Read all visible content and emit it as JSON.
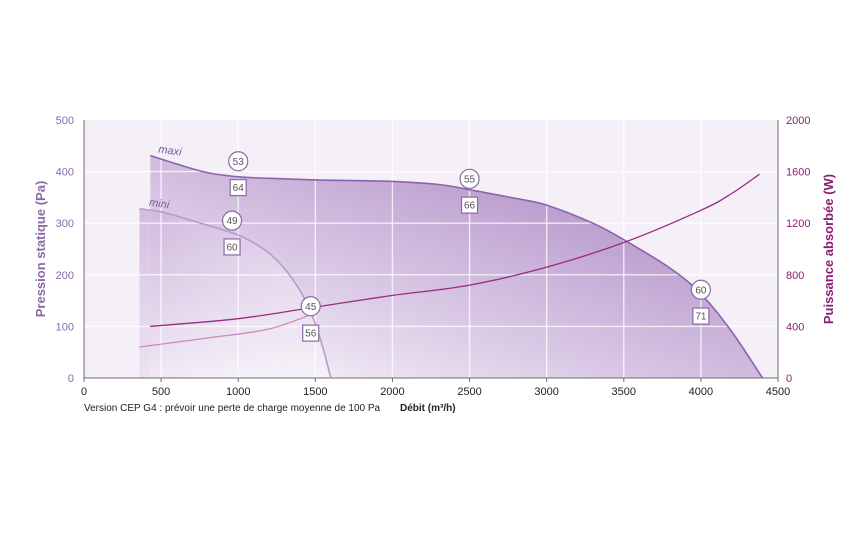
{
  "chart_data": {
    "type": "line",
    "xlabel": "Débit (m³/h)",
    "ylabel": "Pression statique (Pa)",
    "y2label": "Puissance absorbée (W)",
    "note": "Version CEP G4 : prévoir une perte de charge moyenne de 100 Pa",
    "xlim": [
      0,
      4500
    ],
    "ylim": [
      0,
      500
    ],
    "y2lim": [
      0,
      2000
    ],
    "x_ticks": [
      "0",
      "500",
      "1000",
      "1500",
      "2000",
      "2500",
      "3000",
      "3500",
      "4000",
      "4500"
    ],
    "y_ticks": [
      "0",
      "100",
      "200",
      "300",
      "400",
      "500"
    ],
    "y2_ticks": [
      "0",
      "400",
      "800",
      "1200",
      "1600",
      "2000"
    ],
    "grid": true,
    "series": [
      {
        "name": "maxi",
        "axis": "left",
        "color": "#8e62ac",
        "x": [
          430,
          600,
          800,
          1000,
          1200,
          1500,
          2000,
          2300,
          2500,
          2800,
          3000,
          3300,
          3500,
          3800,
          4000,
          4200,
          4400
        ],
        "y": [
          431,
          415,
          398,
          390,
          387,
          384,
          381,
          375,
          365,
          348,
          335,
          300,
          268,
          213,
          163,
          90,
          0
        ]
      },
      {
        "name": "mini",
        "axis": "left",
        "color": "#b99acc",
        "x": [
          360,
          500,
          700,
          900,
          1000,
          1100,
          1200,
          1300,
          1400,
          1450,
          1500,
          1550,
          1600
        ],
        "y": [
          328,
          322,
          305,
          287,
          277,
          262,
          242,
          212,
          170,
          140,
          105,
          58,
          0
        ]
      },
      {
        "name": "power-maxi",
        "axis": "right",
        "color": "#9a2a82",
        "x": [
          430,
          1000,
          1500,
          2000,
          2500,
          3000,
          3500,
          4000,
          4200,
          4380
        ],
        "y": [
          400,
          460,
          550,
          640,
          720,
          860,
          1050,
          1300,
          1430,
          1580
        ]
      },
      {
        "name": "power-mini",
        "axis": "right",
        "color": "#cf86bd",
        "x": [
          360,
          800,
          1200,
          1500
        ],
        "y": [
          240,
          310,
          380,
          505
        ]
      }
    ],
    "annotations": [
      {
        "shape": "circle",
        "text": "53",
        "x": 1000,
        "y": 420
      },
      {
        "shape": "square",
        "text": "64",
        "x": 1000,
        "y": 369
      },
      {
        "shape": "circle",
        "text": "49",
        "x": 960,
        "y": 305
      },
      {
        "shape": "square",
        "text": "60",
        "x": 960,
        "y": 254
      },
      {
        "shape": "circle",
        "text": "55",
        "x": 2500,
        "y": 386
      },
      {
        "shape": "square",
        "text": "66",
        "x": 2500,
        "y": 335
      },
      {
        "shape": "circle",
        "text": "45",
        "x": 1470,
        "y": 139
      },
      {
        "shape": "square",
        "text": "56",
        "x": 1470,
        "y": 87
      },
      {
        "shape": "circle",
        "text": "60",
        "x": 4000,
        "y": 171
      },
      {
        "shape": "square",
        "text": "71",
        "x": 4000,
        "y": 120
      }
    ],
    "label_positions": [
      {
        "text": "maxi",
        "x": 480,
        "y": 437
      },
      {
        "text": "mini",
        "x": 420,
        "y": 334
      }
    ],
    "colors": {
      "plot_background": "#f5f0f7",
      "fill_dark": "#a47dbd",
      "fill_light": "#ffffff",
      "grid": "#ffffff",
      "left_axis": "#8a6aa6",
      "right_axis": "#8a1f73"
    }
  }
}
